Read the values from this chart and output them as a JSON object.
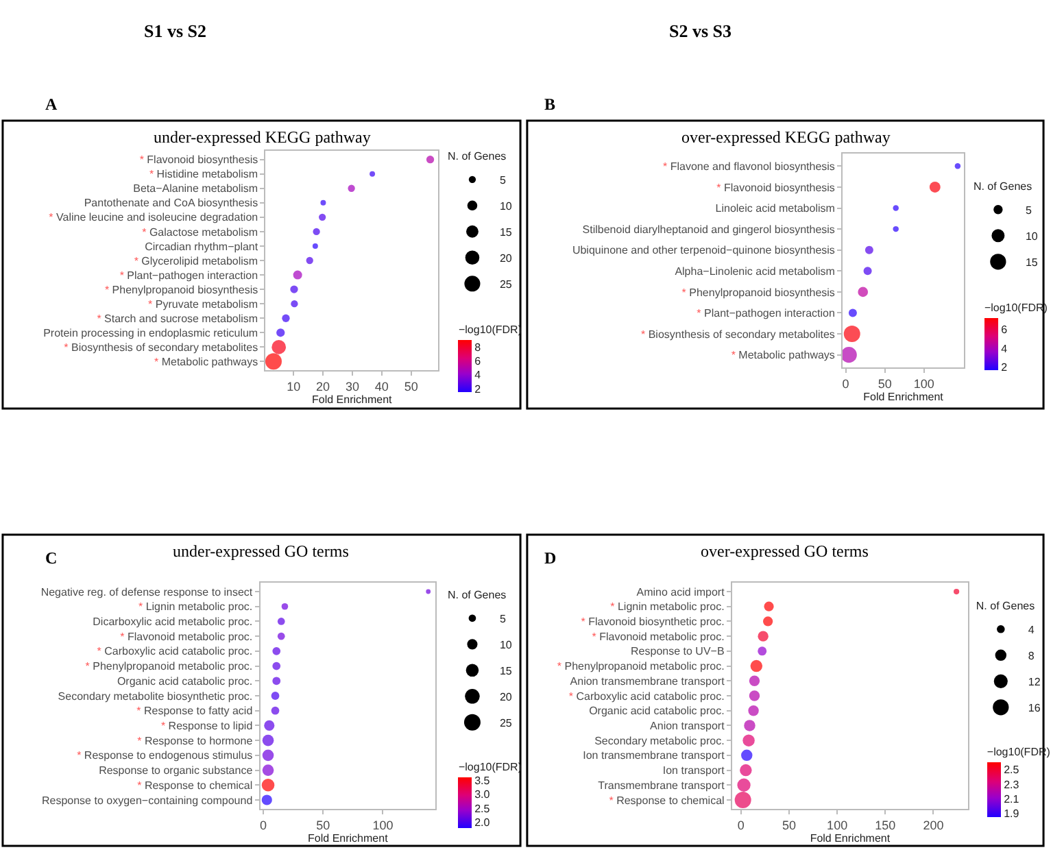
{
  "chart_data": [
    {
      "type": "bubble",
      "title": "under-expressed KEGG pathway",
      "xlabel": "Fold Enrichment",
      "legend_title": "N. of Genes",
      "clabel": "−log10(FDR)",
      "annotations": [
        "A",
        "S1 vs S2"
      ],
      "orientation": "horizontal",
      "categories": [
        "* Flavonoid biosynthesis",
        "* Histidine metabolism",
        "Beta−Alanine metabolism",
        "Pantothenate and CoA biosynthesis",
        "* Valine leucine and isoleucine degradation",
        "* Galactose metabolism",
        "Circadian rhythm−plant",
        "* Glycerolipid metabolism",
        "* Plant−pathogen interaction",
        "* Phenylpropanoid biosynthesis",
        "* Pyruvate metabolism",
        "* Starch and sucrose metabolism",
        "Protein processing in endoplasmic reticulum",
        "* Biosynthesis of secondary metabolites",
        "* Metabolic pathways"
      ],
      "values": [
        56.5,
        36.8,
        29.7,
        20.1,
        19.8,
        17.8,
        17.4,
        15.5,
        11.4,
        10.2,
        10.3,
        7.4,
        5.6,
        5.0,
        3.2
      ],
      "sizes": [
        6,
        3,
        5,
        3,
        5,
        5,
        3,
        5,
        8,
        6,
        5,
        6,
        7,
        20,
        27
      ],
      "cvalues": [
        5.0,
        2.0,
        4.5,
        1.8,
        2.5,
        2.3,
        1.6,
        2.5,
        4.5,
        2.3,
        2.2,
        2.0,
        2.0,
        8.5,
        9.0
      ],
      "size_legend": [
        5,
        10,
        15,
        20,
        25
      ],
      "clim": [
        1.5,
        9.0
      ],
      "cticks": [
        2,
        4,
        6,
        8
      ],
      "xlim": [
        0.5,
        59.2
      ],
      "xticks": [
        10,
        20,
        30,
        40,
        50
      ]
    },
    {
      "type": "bubble",
      "title": "over-expressed KEGG pathway",
      "xlabel": "Fold Enrichment",
      "legend_title": "N. of Genes",
      "clabel": "−log10(FDR)",
      "annotations": [
        "B",
        "S2 vs S3"
      ],
      "orientation": "horizontal",
      "categories": [
        "* Flavone and flavonol biosynthesis",
        "* Flavonoid biosynthesis",
        "Linoleic acid metabolism",
        "Stilbenoid diarylheptanoid and gingerol biosynthesis",
        "Ubiquinone and other terpenoid−quinone biosynthesis",
        "Alpha−Linolenic acid metabolism",
        "* Phenylpropanoid biosynthesis",
        "* Plant−pathogen interaction",
        "* Biosynthesis of secondary metabolites",
        "* Metabolic pathways"
      ],
      "values": [
        143,
        114,
        64,
        64,
        30,
        28,
        22,
        9,
        8,
        4
      ],
      "sizes": [
        2,
        7,
        2,
        2,
        4,
        4,
        6,
        4,
        16,
        15
      ],
      "cvalues": [
        1.8,
        7.0,
        1.8,
        1.8,
        2.5,
        2.3,
        4.5,
        1.8,
        7.0,
        4.2
      ],
      "size_legend": [
        5,
        10,
        15
      ],
      "clim": [
        1.7,
        7.2
      ],
      "cticks": [
        2,
        4,
        6
      ],
      "xlim": [
        -4,
        151
      ],
      "xticks": [
        0,
        50,
        100
      ]
    },
    {
      "type": "bubble",
      "title": "under-expressed GO terms",
      "xlabel": "Fold Enrichment",
      "legend_title": "N. of Genes",
      "clabel": "−log10(FDR)",
      "annotations": [
        "C"
      ],
      "orientation": "horizontal",
      "categories": [
        "Negative reg. of defense response to insect",
        "* Lignin metabolic proc.",
        "Dicarboxylic acid metabolic proc.",
        "* Flavonoid metabolic proc.",
        "* Carboxylic acid catabolic proc.",
        "* Phenylpropanoid metabolic proc.",
        "Organic acid catabolic proc.",
        "Secondary metabolite biosynthetic proc.",
        "* Response to fatty acid",
        "* Response to lipid",
        "* Response to hormone",
        "* Response to endogenous stimulus",
        "Response to organic substance",
        "* Response to chemical",
        "Response to oxygen−containing compound"
      ],
      "values": [
        138,
        18,
        15,
        15,
        11,
        11,
        11,
        10,
        10,
        5,
        4,
        4,
        4,
        4,
        3
      ],
      "sizes": [
        2,
        4,
        5,
        5,
        6,
        6,
        6,
        6,
        6,
        10,
        12,
        12,
        12,
        15,
        10
      ],
      "cvalues": [
        2.2,
        2.2,
        2.1,
        2.2,
        2.1,
        2.1,
        2.1,
        2.0,
        2.1,
        2.1,
        2.1,
        2.2,
        2.3,
        3.6,
        1.8
      ],
      "size_legend": [
        5,
        10,
        15,
        20,
        25
      ],
      "clim": [
        1.8,
        3.6
      ],
      "cticks": [
        {
          "value": 2,
          "label": "2.0"
        },
        2.5,
        {
          "value": 3,
          "label": "3.0"
        },
        3.5
      ],
      "xlim": [
        -2.6,
        144
      ],
      "xticks": [
        0,
        50,
        100
      ]
    },
    {
      "type": "bubble",
      "title": "over-expressed GO terms",
      "xlabel": "Fold Enrichment",
      "legend_title": "N. of Genes",
      "clabel": "−log10(FDR)",
      "annotations": [
        "D"
      ],
      "orientation": "horizontal",
      "categories": [
        "Amino acid import",
        "* Lignin metabolic proc.",
        "* Flavonoid biosynthetic proc.",
        "* Flavonoid metabolic proc.",
        "Response to UV−B",
        "* Phenylpropanoid metabolic proc.",
        "Anion transmembrane transport",
        "* Carboxylic acid catabolic proc.",
        "Organic acid catabolic proc.",
        "Anion transport",
        "Secondary metabolic proc.",
        "Ion transmembrane transport",
        "Ion transport",
        "Transmembrane transport",
        "* Response to chemical"
      ],
      "values": [
        224,
        29,
        28,
        23,
        22,
        16,
        14,
        14,
        13,
        9,
        8,
        6,
        5,
        3,
        2
      ],
      "sizes": [
        2,
        6,
        6,
        7,
        5,
        9,
        7,
        7,
        7,
        8,
        9,
        8,
        9,
        11,
        17
      ],
      "cvalues": [
        2.5,
        2.6,
        2.6,
        2.5,
        2.1,
        2.6,
        2.2,
        2.2,
        2.2,
        2.2,
        2.35,
        1.85,
        2.35,
        2.35,
        2.4
      ],
      "size_legend": [
        4,
        8,
        12,
        16
      ],
      "clim": [
        1.85,
        2.6
      ],
      "cticks": [
        1.9,
        2.1,
        2.3,
        2.5
      ],
      "xlim": [
        -9.3,
        236
      ],
      "xticks": [
        0,
        50,
        100,
        150,
        200
      ]
    }
  ]
}
